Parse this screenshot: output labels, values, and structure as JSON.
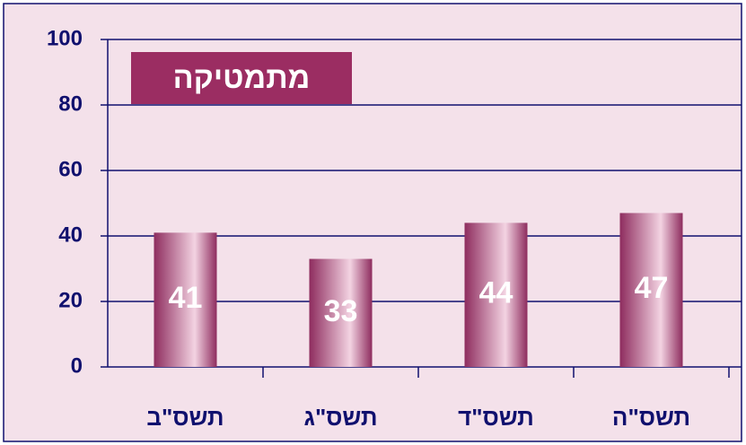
{
  "chart_data": {
    "type": "bar",
    "title": "מתמטיקה",
    "categories": [
      "תשס\"ב",
      "תשס\"ג",
      "תשס\"ד",
      "תשס\"ה"
    ],
    "values": [
      41,
      33,
      44,
      47
    ],
    "color": "#8e2c5e",
    "ylim": [
      0,
      100
    ],
    "yticks": [
      0,
      20,
      40,
      60,
      80,
      100
    ],
    "grid": true
  }
}
